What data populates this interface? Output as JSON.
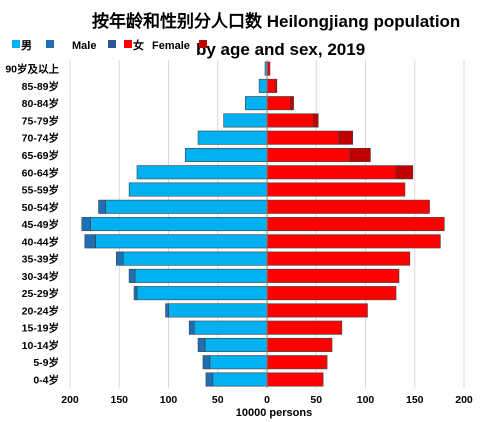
{
  "chart_data": {
    "type": "bar",
    "orientation": "horizontal",
    "layout": "population-pyramid",
    "title_line1": "按年龄和性别分人口数 Heilongjiang population",
    "title_line2": "by age and sex, 2019",
    "xlabel": "10000 persons",
    "xlim": [
      -200,
      200
    ],
    "x_ticks": [
      -200,
      -150,
      -100,
      -50,
      0,
      50,
      100,
      150,
      200
    ],
    "x_tick_labels": [
      "200",
      "150",
      "100",
      "50",
      "0",
      "50",
      "100",
      "150",
      "200"
    ],
    "legend_placement": "top-left",
    "categories": [
      "0-4岁",
      "5-9岁",
      "10-14岁",
      "15-19岁",
      "20-24岁",
      "25-29岁",
      "30-34岁",
      "35-39岁",
      "40-44岁",
      "45-49岁",
      "50-54岁",
      "55-59岁",
      "60-64岁",
      "65-69岁",
      "70-74岁",
      "75-79岁",
      "80-84岁",
      "85-89岁",
      "90岁及以上"
    ],
    "series": [
      {
        "name": "男",
        "side": "left",
        "color": "#00B0F0",
        "values": [
          55,
          58,
          63,
          74,
          100,
          132,
          134,
          146,
          174,
          179,
          164,
          140,
          132,
          83,
          70,
          44,
          22,
          8,
          2
        ]
      },
      {
        "name": "男",
        "side": "left",
        "color": "#1F6FB5",
        "values": [
          7,
          7,
          7,
          5,
          3,
          3,
          6,
          7,
          11,
          9,
          7,
          0,
          0,
          0,
          0,
          0,
          0,
          0,
          0
        ]
      },
      {
        "name": "Male",
        "side": "left",
        "color": "#2F5597",
        "values": [
          0,
          0,
          0,
          0,
          0,
          0,
          0,
          0,
          0,
          0,
          0,
          0,
          0,
          0,
          0,
          0,
          0,
          0,
          0
        ]
      },
      {
        "name": "女",
        "side": "right",
        "color": "#FF0000",
        "values": [
          57,
          61,
          66,
          76,
          102,
          131,
          134,
          145,
          176,
          180,
          165,
          140,
          131,
          84,
          73,
          47,
          24,
          9,
          3
        ]
      },
      {
        "name": "Female",
        "side": "right",
        "color": "#C00000",
        "values": [
          0,
          0,
          0,
          0,
          0,
          0,
          0,
          0,
          0,
          0,
          0,
          0,
          17,
          21,
          14,
          5,
          3,
          1,
          0
        ]
      }
    ]
  }
}
